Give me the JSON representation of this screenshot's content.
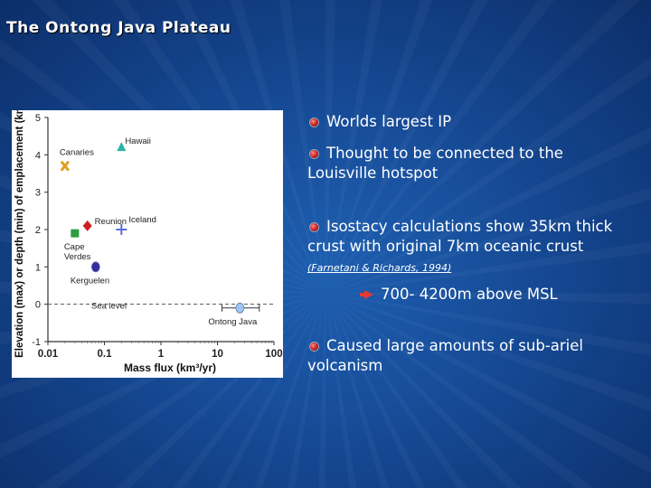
{
  "slide": {
    "title": "The Ontong Java Plateau"
  },
  "bullets": [
    {
      "text": "Worlds largest IP"
    },
    {
      "text": "Thought to be connected to the Louisville hotspot"
    },
    {
      "text": "Isostacy calculations show 35km thick crust with original 7km oceanic crust ",
      "citation": "(Farnetani & Richards, 1994)"
    },
    {
      "text": "Caused large amounts of sub-ariel volcanism"
    }
  ],
  "sub_bullet": {
    "text": "700- 4200m above MSL"
  },
  "chart_data": {
    "type": "scatter",
    "xlabel": "Mass flux (km³/yr)",
    "ylabel": "Elevation (max) or depth (min) of emplacement (km)",
    "xscale": "log",
    "xlim": [
      0.01,
      100
    ],
    "ylim": [
      -1,
      5
    ],
    "x_ticks": [
      "0.01",
      "0.1",
      "1",
      "10",
      "100"
    ],
    "y_ticks": [
      "-1",
      "0",
      "1",
      "2",
      "3",
      "4",
      "5"
    ],
    "reference_line": {
      "label": "Sea level",
      "y": 0
    },
    "points": [
      {
        "label": "Hawaii",
        "x": 0.2,
        "y": 4.2,
        "marker": "triangle",
        "color": "#2bb3a6"
      },
      {
        "label": "Canaries",
        "x": 0.02,
        "y": 3.7,
        "marker": "x",
        "color": "#e0a020"
      },
      {
        "label": "Reunion",
        "x": 0.05,
        "y": 2.1,
        "marker": "diamond",
        "color": "#cc1f1f"
      },
      {
        "label": "Cape Verdes",
        "x": 0.03,
        "y": 1.9,
        "marker": "square",
        "color": "#2e9e3e"
      },
      {
        "label": "Iceland",
        "x": 0.2,
        "y": 2.0,
        "marker": "plus",
        "color": "#5a6fd6"
      },
      {
        "label": "Kerguelen",
        "x": 0.07,
        "y": 1.0,
        "marker": "circle",
        "color": "#3a2aa0"
      },
      {
        "label": "Ontong Java",
        "x": 25,
        "y": -0.1,
        "marker": "circle",
        "color": "#9ec5f0",
        "error_x": [
          12,
          55
        ]
      }
    ]
  }
}
